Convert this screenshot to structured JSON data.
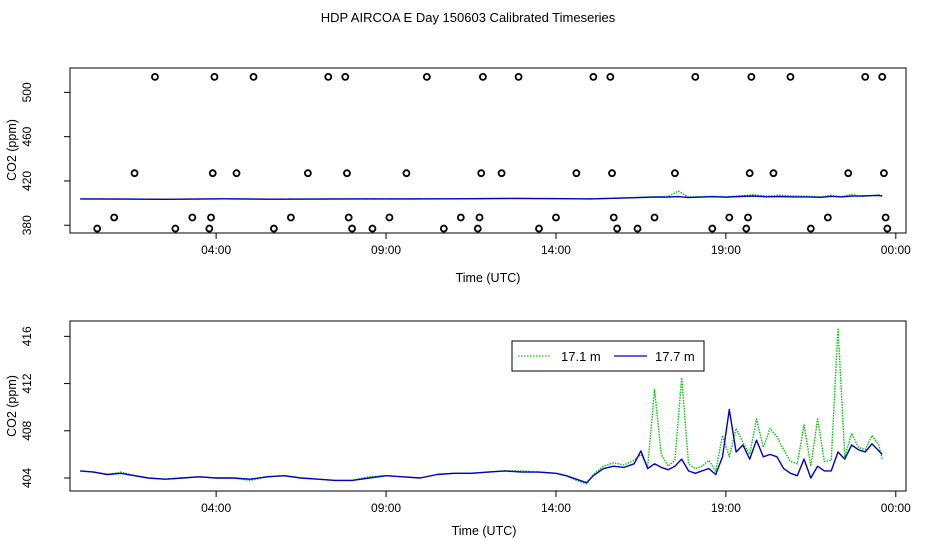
{
  "title": "HDP AIRCOA E  Day 150603  Calibrated Timeseries",
  "colors": {
    "green": "#00c800",
    "blue": "#0000c8",
    "axis": "#000000",
    "background": "#ffffff"
  },
  "chart_data": [
    {
      "type": "scatter+line",
      "xlabel": "Time (UTC)",
      "ylabel": "CO2 (ppm)",
      "xticks": [
        {
          "label": "04:00",
          "x": 4
        },
        {
          "label": "09:00",
          "x": 9
        },
        {
          "label": "14:00",
          "x": 14
        },
        {
          "label": "19:00",
          "x": 19
        },
        {
          "label": "00:00",
          "x": 24
        }
      ],
      "yticks": [
        {
          "label": "380",
          "y": 380
        },
        {
          "label": "420",
          "y": 420
        },
        {
          "label": "460",
          "y": 460
        },
        {
          "label": "500",
          "y": 500
        }
      ],
      "xlim": [
        -0.3,
        24.3
      ],
      "ylim": [
        373,
        522
      ],
      "points": [
        [
          0.5,
          377
        ],
        [
          1.0,
          387
        ],
        [
          1.6,
          427
        ],
        [
          2.2,
          514
        ],
        [
          2.8,
          377
        ],
        [
          3.3,
          387
        ],
        [
          3.8,
          377
        ],
        [
          3.85,
          387
        ],
        [
          3.9,
          427
        ],
        [
          3.95,
          514
        ],
        [
          4.6,
          427
        ],
        [
          5.1,
          514
        ],
        [
          5.7,
          377
        ],
        [
          6.2,
          387
        ],
        [
          6.7,
          427
        ],
        [
          7.3,
          514
        ],
        [
          7.8,
          514
        ],
        [
          7.85,
          427
        ],
        [
          7.9,
          387
        ],
        [
          8.0,
          377
        ],
        [
          8.6,
          377
        ],
        [
          9.1,
          387
        ],
        [
          9.6,
          427
        ],
        [
          10.2,
          514
        ],
        [
          10.7,
          377
        ],
        [
          11.2,
          387
        ],
        [
          11.7,
          377
        ],
        [
          11.75,
          387
        ],
        [
          11.8,
          427
        ],
        [
          11.85,
          514
        ],
        [
          12.4,
          427
        ],
        [
          12.9,
          514
        ],
        [
          13.5,
          377
        ],
        [
          14.0,
          387
        ],
        [
          14.6,
          427
        ],
        [
          15.1,
          514
        ],
        [
          15.6,
          514
        ],
        [
          15.65,
          427
        ],
        [
          15.7,
          387
        ],
        [
          15.8,
          377
        ],
        [
          16.4,
          377
        ],
        [
          16.9,
          387
        ],
        [
          17.5,
          427
        ],
        [
          18.1,
          514
        ],
        [
          18.6,
          377
        ],
        [
          19.1,
          387
        ],
        [
          19.6,
          377
        ],
        [
          19.65,
          387
        ],
        [
          19.7,
          427
        ],
        [
          19.75,
          514
        ],
        [
          20.4,
          427
        ],
        [
          20.9,
          514
        ],
        [
          21.5,
          377
        ],
        [
          22.0,
          387
        ],
        [
          22.6,
          427
        ],
        [
          23.1,
          514
        ],
        [
          23.6,
          514
        ],
        [
          23.65,
          427
        ],
        [
          23.7,
          387
        ],
        [
          23.75,
          377
        ]
      ],
      "series": [
        {
          "name": "17.1 m",
          "color": "#00c800",
          "style": "dotted",
          "x": [
            0,
            1.4,
            2.5,
            4.2,
            5.6,
            8.0,
            9.5,
            11.0,
            12.8,
            14.3,
            15.0,
            16.2,
            16.8,
            17.3,
            17.6,
            17.9,
            18.3,
            18.6,
            19.0,
            19.4,
            19.8,
            20.2,
            20.6,
            21.0,
            21.4,
            21.8,
            22.1,
            22.4,
            22.7,
            23.0,
            23.3,
            23.5,
            23.6
          ],
          "y": [
            403.8,
            403.6,
            403.4,
            403.9,
            403.5,
            403.8,
            403.8,
            403.9,
            404.2,
            404.0,
            403.8,
            405.0,
            405.7,
            406.0,
            410.8,
            405.5,
            405.8,
            406.2,
            405.8,
            406.6,
            407.5,
            406.3,
            407.1,
            406.5,
            406.2,
            405.6,
            407.0,
            405.8,
            407.8,
            406.2,
            406.6,
            407.5,
            406.0
          ]
        },
        {
          "name": "17.7 m",
          "color": "#0000c8",
          "style": "solid",
          "x": [
            0,
            1.4,
            2.5,
            4.2,
            5.6,
            8.0,
            9.5,
            11.0,
            12.8,
            14.3,
            15.0,
            16.2,
            16.8,
            17.3,
            17.6,
            17.9,
            18.3,
            18.6,
            19.0,
            19.4,
            19.8,
            20.2,
            20.6,
            21.0,
            21.4,
            21.8,
            22.1,
            22.4,
            22.7,
            23.0,
            23.3,
            23.5,
            23.6
          ],
          "y": [
            403.8,
            403.6,
            403.4,
            403.9,
            403.5,
            403.8,
            403.8,
            403.9,
            404.2,
            404.0,
            403.8,
            404.8,
            405.3,
            405.5,
            405.9,
            405.1,
            405.4,
            405.8,
            405.3,
            406.0,
            406.4,
            405.7,
            406.0,
            405.6,
            405.6,
            405.2,
            406.1,
            405.6,
            406.3,
            406.4,
            406.8,
            406.9,
            406.5
          ]
        }
      ]
    },
    {
      "type": "line",
      "xlabel": "Time (UTC)",
      "ylabel": "CO2 (ppm)",
      "xticks": [
        {
          "label": "04:00",
          "x": 4
        },
        {
          "label": "09:00",
          "x": 9
        },
        {
          "label": "14:00",
          "x": 14
        },
        {
          "label": "19:00",
          "x": 19
        },
        {
          "label": "00:00",
          "x": 24
        }
      ],
      "yticks": [
        {
          "label": "404",
          "y": 404
        },
        {
          "label": "408",
          "y": 408
        },
        {
          "label": "412",
          "y": 412
        },
        {
          "label": "416",
          "y": 416
        }
      ],
      "xlim": [
        -0.3,
        24.3
      ],
      "ylim": [
        402.9,
        417.3
      ],
      "legend": {
        "position": "top-right",
        "entries": [
          "17.1 m",
          "17.7 m"
        ]
      },
      "series": [
        {
          "name": "17.1 m",
          "color": "#00c800",
          "style": "dotted",
          "x": [
            0,
            0.4,
            0.8,
            1.2,
            1.6,
            2.0,
            2.5,
            3.0,
            3.5,
            4.0,
            4.5,
            5.0,
            5.5,
            6.0,
            6.5,
            7.0,
            7.5,
            8.0,
            8.5,
            9.0,
            9.5,
            10.0,
            10.5,
            11.0,
            11.5,
            12.0,
            12.5,
            13.0,
            13.5,
            14.0,
            14.3,
            14.6,
            14.9,
            15.1,
            15.4,
            15.7,
            16.0,
            16.3,
            16.5,
            16.7,
            16.9,
            17.1,
            17.3,
            17.5,
            17.7,
            17.9,
            18.1,
            18.3,
            18.5,
            18.7,
            18.9,
            19.1,
            19.3,
            19.5,
            19.7,
            19.9,
            20.1,
            20.3,
            20.5,
            20.7,
            20.9,
            21.1,
            21.3,
            21.5,
            21.7,
            21.9,
            22.1,
            22.3,
            22.5,
            22.7,
            22.9,
            23.1,
            23.3,
            23.5,
            23.6
          ],
          "y": [
            404.6,
            404.5,
            404.3,
            404.5,
            404.2,
            404.0,
            403.9,
            404.0,
            404.1,
            404.0,
            404.0,
            403.8,
            404.1,
            404.2,
            404.0,
            403.9,
            403.8,
            403.8,
            404.1,
            404.2,
            404.1,
            404.0,
            404.3,
            404.4,
            404.4,
            404.5,
            404.6,
            404.6,
            404.5,
            404.4,
            404.2,
            403.8,
            403.5,
            404.3,
            405.0,
            405.3,
            405.1,
            405.5,
            406.0,
            405.0,
            411.5,
            406.0,
            405.0,
            405.5,
            412.5,
            405.2,
            404.8,
            405.0,
            405.5,
            404.6,
            407.6,
            405.8,
            408.2,
            407.0,
            406.0,
            409.0,
            406.6,
            408.2,
            407.5,
            406.4,
            405.4,
            405.2,
            408.5,
            405.0,
            409.0,
            405.4,
            405.5,
            416.7,
            405.8,
            407.8,
            406.6,
            406.4,
            407.6,
            406.8,
            405.6
          ]
        },
        {
          "name": "17.7 m",
          "color": "#0000c8",
          "style": "solid",
          "x": [
            0,
            0.4,
            0.8,
            1.2,
            1.6,
            2.0,
            2.5,
            3.0,
            3.5,
            4.0,
            4.5,
            5.0,
            5.5,
            6.0,
            6.5,
            7.0,
            7.5,
            8.0,
            8.5,
            9.0,
            9.5,
            10.0,
            10.5,
            11.0,
            11.5,
            12.0,
            12.5,
            13.0,
            13.5,
            14.0,
            14.3,
            14.6,
            14.9,
            15.1,
            15.4,
            15.7,
            16.0,
            16.3,
            16.5,
            16.7,
            16.9,
            17.1,
            17.3,
            17.5,
            17.7,
            17.9,
            18.1,
            18.3,
            18.5,
            18.7,
            18.9,
            19.1,
            19.3,
            19.5,
            19.7,
            19.9,
            20.1,
            20.3,
            20.5,
            20.7,
            20.9,
            21.1,
            21.3,
            21.5,
            21.7,
            21.9,
            22.1,
            22.3,
            22.5,
            22.7,
            22.9,
            23.1,
            23.3,
            23.5,
            23.6
          ],
          "y": [
            404.6,
            404.5,
            404.3,
            404.4,
            404.2,
            404.0,
            403.9,
            404.0,
            404.1,
            404.0,
            404.0,
            403.9,
            404.1,
            404.2,
            404.0,
            403.9,
            403.8,
            403.8,
            404.0,
            404.2,
            404.1,
            404.0,
            404.3,
            404.4,
            404.4,
            404.5,
            404.6,
            404.5,
            404.5,
            404.4,
            404.2,
            403.9,
            403.6,
            404.2,
            404.8,
            405.0,
            404.9,
            405.2,
            406.3,
            404.8,
            405.2,
            404.9,
            404.7,
            405.0,
            405.6,
            404.6,
            404.4,
            404.6,
            404.8,
            404.3,
            405.8,
            409.8,
            406.2,
            406.8,
            405.6,
            407.2,
            405.8,
            406.0,
            405.8,
            404.8,
            404.4,
            404.2,
            405.6,
            404.0,
            405.0,
            404.6,
            404.6,
            406.2,
            405.6,
            406.8,
            406.4,
            406.2,
            406.9,
            406.3,
            406.0
          ]
        }
      ]
    }
  ]
}
